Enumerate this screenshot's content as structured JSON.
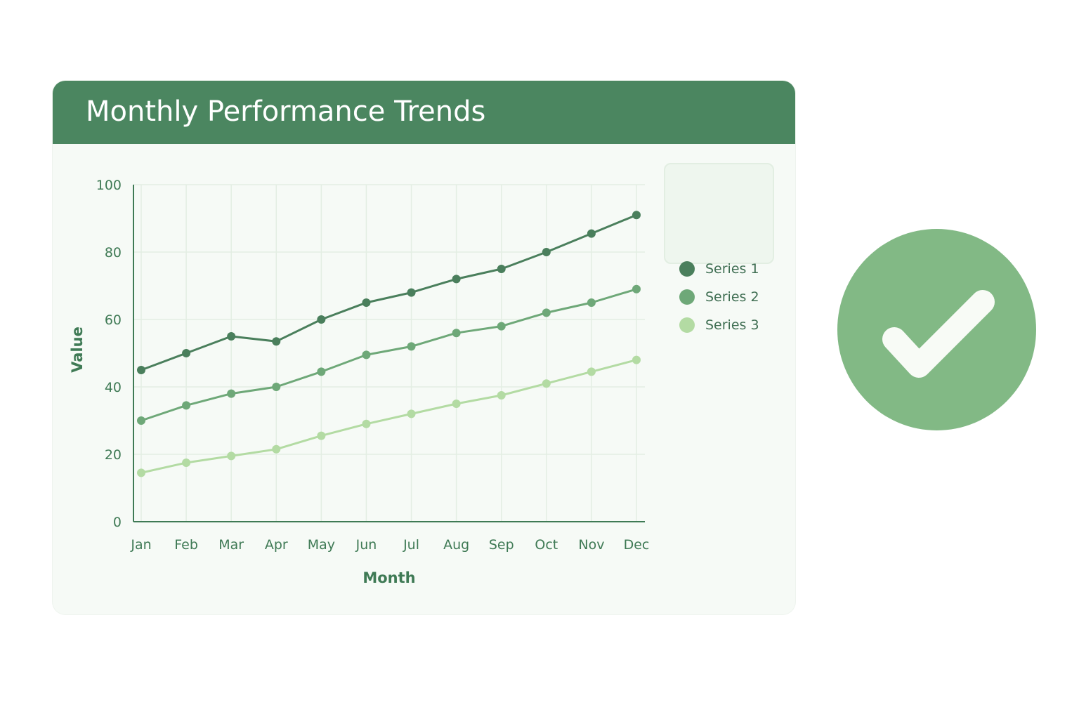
{
  "title": "Monthly Performance Trends",
  "colors": {
    "header": "#4b8660",
    "series1": "#4a7f5c",
    "series2": "#6ea878",
    "series3": "#b3dba3",
    "badge": "#82b985",
    "axis": "#3f7a55"
  },
  "icons": {
    "badge": "check-circle-icon"
  },
  "chart_data": {
    "type": "line",
    "title": "Monthly Performance Trends",
    "xlabel": "Month",
    "ylabel": "Value",
    "categories": [
      "Jan",
      "Feb",
      "Mar",
      "Apr",
      "May",
      "Jun",
      "Jul",
      "Aug",
      "Sep",
      "Oct",
      "Nov",
      "Dec"
    ],
    "ylim": [
      0,
      100
    ],
    "yticks": [
      0,
      20,
      40,
      60,
      80,
      100
    ],
    "grid": true,
    "legend_position": "top-right",
    "series": [
      {
        "name": "Series 1",
        "color": "#4a7f5c",
        "values": [
          45,
          50,
          55,
          53.5,
          60,
          65,
          68,
          72,
          75,
          80,
          85.5,
          91
        ]
      },
      {
        "name": "Series 2",
        "color": "#6ea878",
        "values": [
          30,
          34.5,
          38,
          40,
          44.5,
          49.5,
          52,
          56,
          58,
          62,
          65,
          69
        ]
      },
      {
        "name": "Series 3",
        "color": "#b3dba3",
        "values": [
          14.5,
          17.5,
          19.5,
          21.5,
          25.5,
          29,
          32,
          35,
          37.5,
          41,
          44.5,
          48
        ]
      }
    ]
  }
}
